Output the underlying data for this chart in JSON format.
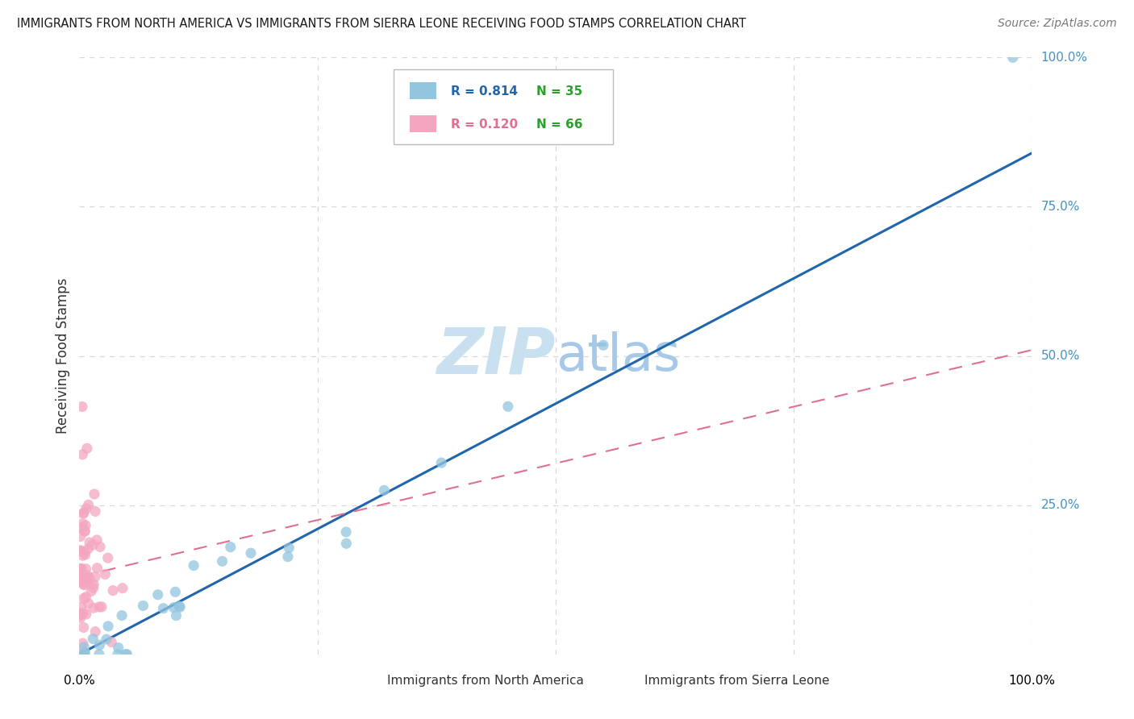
{
  "title": "IMMIGRANTS FROM NORTH AMERICA VS IMMIGRANTS FROM SIERRA LEONE RECEIVING FOOD STAMPS CORRELATION CHART",
  "source": "Source: ZipAtlas.com",
  "ylabel": "Receiving Food Stamps",
  "ytick_labels": [
    "25.0%",
    "50.0%",
    "75.0%",
    "100.0%"
  ],
  "ytick_values": [
    0.25,
    0.5,
    0.75,
    1.0
  ],
  "blue_color": "#92c5de",
  "pink_color": "#f4a6c0",
  "blue_line_color": "#2166ac",
  "pink_line_color": "#e07090",
  "blue_tick_color": "#4393c3",
  "watermark_color": "#c8e0f0",
  "watermark_text": "ZIPatlas",
  "legend_R_color_blue": "#2166ac",
  "legend_R_color_pink": "#e07090",
  "legend_N_color": "#2ca02c",
  "na_seed": 99,
  "sl_seed": 77,
  "line_intercept_blue": 0.0,
  "line_slope_blue": 0.84,
  "line_intercept_pink": 0.13,
  "line_slope_pink": 0.38
}
